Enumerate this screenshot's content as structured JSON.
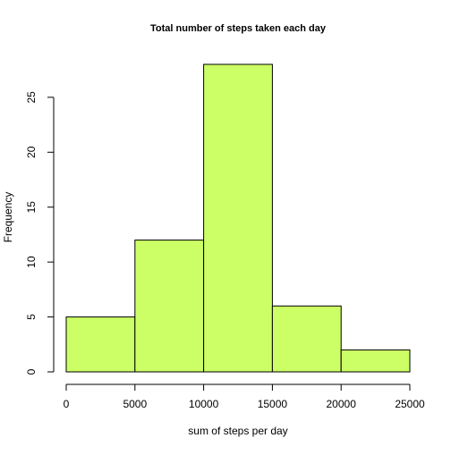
{
  "chart_data": {
    "type": "bar",
    "subtype": "histogram",
    "title": "Total number of steps taken each day",
    "xlabel": "sum of steps per day",
    "ylabel": "Frequency",
    "bins": [
      {
        "start": 0,
        "end": 5000,
        "count": 5
      },
      {
        "start": 5000,
        "end": 10000,
        "count": 12
      },
      {
        "start": 10000,
        "end": 15000,
        "count": 28
      },
      {
        "start": 15000,
        "end": 20000,
        "count": 6
      },
      {
        "start": 20000,
        "end": 25000,
        "count": 2
      }
    ],
    "xlim": [
      0,
      25000
    ],
    "ylim": [
      0,
      28
    ],
    "xticks": [
      0,
      5000,
      10000,
      15000,
      20000,
      25000
    ],
    "yticks": [
      0,
      5,
      10,
      15,
      20,
      25
    ],
    "bar_fill": "#CCFF66",
    "bar_stroke": "#000000",
    "grid": false,
    "legend": "none"
  }
}
